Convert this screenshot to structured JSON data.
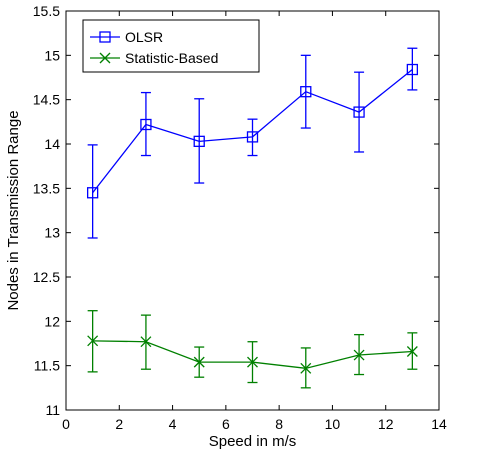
{
  "chart_data": {
    "type": "line",
    "title": "",
    "xlabel": "Speed in m/s",
    "ylabel": "Nodes in Transmission Range",
    "xlim": [
      0,
      14
    ],
    "ylim": [
      11,
      15.5
    ],
    "x_ticks": [
      0,
      2,
      4,
      6,
      8,
      10,
      12,
      14
    ],
    "y_ticks": [
      11,
      11.5,
      12,
      12.5,
      13,
      13.5,
      14,
      14.5,
      15,
      15.5
    ],
    "x_tick_labels": [
      "0",
      "2",
      "4",
      "6",
      "8",
      "10",
      "12",
      "14"
    ],
    "y_tick_labels": [
      "11",
      "11.5",
      "12",
      "12.5",
      "13",
      "13.5",
      "14",
      "14.5",
      "15",
      "15.5"
    ],
    "grid": false,
    "legend_position": "top-left",
    "x": [
      1,
      3,
      5,
      7,
      9,
      11,
      13
    ],
    "series": [
      {
        "name": "OLSR",
        "color": "#0000ff",
        "marker": "square",
        "values": [
          13.45,
          14.22,
          14.03,
          14.08,
          14.59,
          14.36,
          14.84
        ],
        "err_low": [
          12.94,
          13.87,
          13.56,
          13.87,
          14.18,
          13.91,
          14.61
        ],
        "err_high": [
          13.99,
          14.58,
          14.51,
          14.28,
          15.0,
          14.81,
          15.08
        ]
      },
      {
        "name": "Statistic-Based",
        "color": "#008000",
        "marker": "x",
        "values": [
          11.78,
          11.77,
          11.54,
          11.54,
          11.47,
          11.62,
          11.66
        ],
        "err_low": [
          11.43,
          11.46,
          11.37,
          11.31,
          11.25,
          11.4,
          11.46
        ],
        "err_high": [
          12.12,
          12.07,
          11.71,
          11.77,
          11.7,
          11.85,
          11.87
        ]
      }
    ]
  }
}
